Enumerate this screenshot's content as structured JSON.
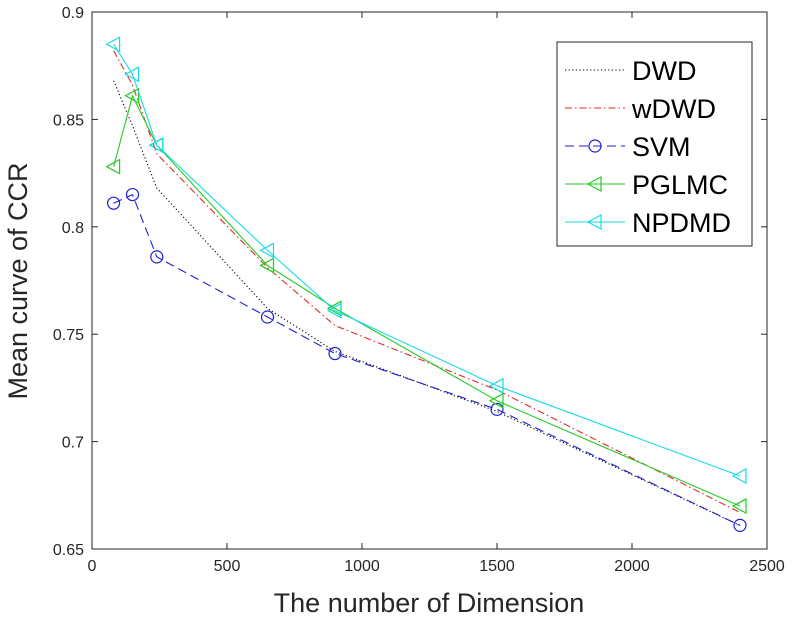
{
  "chart_data": {
    "type": "line",
    "title": "",
    "xlabel": "The number of Dimension",
    "ylabel": "Mean curve of CCR",
    "xlim": [
      0,
      2500
    ],
    "ylim": [
      0.65,
      0.9
    ],
    "xticks": [
      0,
      500,
      1000,
      1500,
      2000,
      2500
    ],
    "yticks": [
      0.65,
      0.7,
      0.75,
      0.8,
      0.85,
      0.9
    ],
    "xtick_labels": [
      "0",
      "500",
      "1000",
      "1500",
      "2000",
      "2500"
    ],
    "ytick_labels": [
      "0.65",
      "0.7",
      "0.75",
      "0.8",
      "0.85",
      "0.9"
    ],
    "grid": false,
    "legend_position": "top-right",
    "x": [
      80,
      150,
      240,
      650,
      900,
      1500,
      2400
    ],
    "series": [
      {
        "name": "DWD",
        "values": [
          0.868,
          0.847,
          0.818,
          0.762,
          0.742,
          0.714,
          0.661
        ],
        "color": "#000000",
        "dash": "1.2,2.4",
        "marker": "none"
      },
      {
        "name": "wDWD",
        "values": [
          0.882,
          0.866,
          0.834,
          0.781,
          0.754,
          0.724,
          0.667
        ],
        "color": "#e02a2a",
        "dash": "7,3,1.5,3",
        "marker": "none"
      },
      {
        "name": "SVM",
        "values": [
          0.811,
          0.815,
          0.786,
          0.758,
          0.741,
          0.715,
          0.661
        ],
        "color": "#1f1fd6",
        "dash": "9,5",
        "marker": "circle"
      },
      {
        "name": "PGLMC",
        "values": [
          0.828,
          0.861,
          0.838,
          0.782,
          0.762,
          0.719,
          0.67
        ],
        "color": "#22cc22",
        "dash": "",
        "marker": "triangle-left"
      },
      {
        "name": "NPDMD",
        "values": [
          0.885,
          0.871,
          0.838,
          0.789,
          0.761,
          0.726,
          0.684
        ],
        "color": "#19d9e6",
        "dash": "",
        "marker": "triangle-left"
      }
    ]
  }
}
